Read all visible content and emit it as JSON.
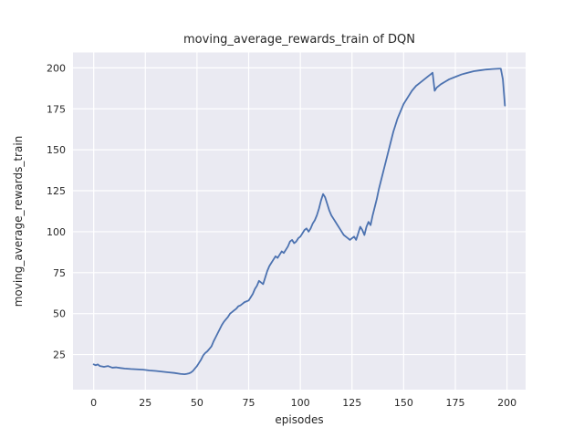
{
  "chart_data": {
    "type": "line",
    "title": "moving_average_rewards_train of DQN",
    "xlabel": "episodes",
    "ylabel": "moving_average_rewards_train",
    "xlim": [
      -10,
      209
    ],
    "ylim": [
      3.6,
      209.4
    ],
    "xticks": [
      0,
      25,
      50,
      75,
      100,
      125,
      150,
      175,
      200
    ],
    "yticks": [
      25,
      50,
      75,
      100,
      125,
      150,
      175,
      200
    ],
    "grid": true,
    "legend_position": "none",
    "colors": {
      "line": "#4c72b0",
      "plot_background": "#eaeaf2",
      "grid": "#ffffff",
      "text": "#262626",
      "figure_background": "#ffffff"
    },
    "series": [
      {
        "name": "moving_average_rewards_train",
        "x": [
          0,
          1,
          2,
          3,
          5,
          7,
          9,
          11,
          13,
          15,
          18,
          21,
          24,
          27,
          30,
          33,
          36,
          39,
          42,
          44,
          45,
          46,
          47,
          48,
          49,
          50,
          51,
          52,
          53,
          54,
          55,
          56,
          57,
          58,
          59,
          60,
          61,
          62,
          63,
          64,
          65,
          66,
          67,
          68,
          69,
          70,
          71,
          72,
          73,
          74,
          75,
          76,
          77,
          78,
          79,
          80,
          81,
          82,
          83,
          84,
          85,
          86,
          87,
          88,
          89,
          90,
          91,
          92,
          93,
          94,
          95,
          96,
          97,
          98,
          99,
          100,
          101,
          102,
          103,
          104,
          105,
          106,
          107,
          108,
          109,
          110,
          111,
          112,
          113,
          114,
          115,
          116,
          117,
          118,
          119,
          120,
          121,
          122,
          123,
          124,
          125,
          126,
          127,
          128,
          129,
          130,
          131,
          132,
          133,
          134,
          135,
          136,
          137,
          138,
          139,
          140,
          141,
          142,
          143,
          144,
          145,
          146,
          147,
          148,
          149,
          150,
          152,
          154,
          156,
          158,
          160,
          162,
          163,
          164,
          165,
          166,
          168,
          170,
          172,
          175,
          178,
          181,
          184,
          187,
          190,
          193,
          196,
          197,
          198,
          199
        ],
        "y": [
          19,
          18.5,
          19,
          18,
          17.5,
          18,
          17,
          17.2,
          16.8,
          16.5,
          16.2,
          16,
          15.8,
          15.3,
          15,
          14.6,
          14.2,
          13.8,
          13.2,
          13,
          13.2,
          13.5,
          14,
          15,
          16.5,
          18,
          20,
          22,
          24.5,
          26,
          27,
          28.5,
          30,
          33,
          35.5,
          38,
          40.5,
          43,
          45,
          46.5,
          48,
          50,
          51,
          52,
          53,
          54.5,
          55,
          56,
          57,
          57.5,
          58,
          60,
          62,
          65,
          67,
          70,
          69,
          68,
          72,
          76,
          79,
          81,
          83,
          85,
          84,
          86,
          88,
          87,
          89,
          91,
          94,
          95,
          93,
          94,
          96,
          97,
          99,
          101,
          102,
          100,
          102,
          105,
          107,
          110,
          114,
          119,
          123,
          121,
          117,
          113,
          110,
          108,
          106,
          104,
          102,
          100,
          98,
          97,
          96,
          95,
          96,
          97,
          95,
          99,
          103,
          101,
          98,
          103,
          106,
          104,
          110,
          115,
          120,
          126,
          131,
          136,
          141,
          146,
          151,
          156,
          161,
          165,
          169,
          172,
          175,
          178,
          182,
          186,
          189,
          191,
          193,
          195,
          196,
          197,
          186,
          188,
          190,
          191.5,
          193,
          194.5,
          196,
          197,
          198,
          198.5,
          199,
          199.3,
          199.5,
          199.5,
          193,
          177
        ]
      }
    ]
  }
}
